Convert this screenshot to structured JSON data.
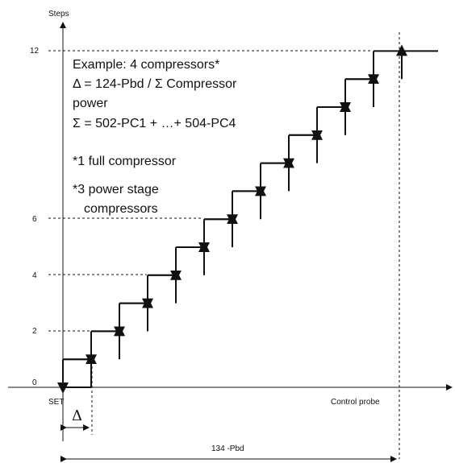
{
  "axes": {
    "y_label": "Steps",
    "x_label": "Control probe",
    "set_label": "SET"
  },
  "y_ticks": [
    "0",
    "2",
    "4",
    "6",
    "12"
  ],
  "annotation": {
    "lines": [
      "Example: 4 compressors*",
      "Δ = 124-Pbd / Σ Compressor",
      "power",
      "Σ = 502-PC1 + …+ 504-PC4",
      "",
      "*1 full compressor",
      "*3 power stage",
      "compressors"
    ]
  },
  "delta_label": "Δ",
  "band_label": "134 -Pbd"
}
